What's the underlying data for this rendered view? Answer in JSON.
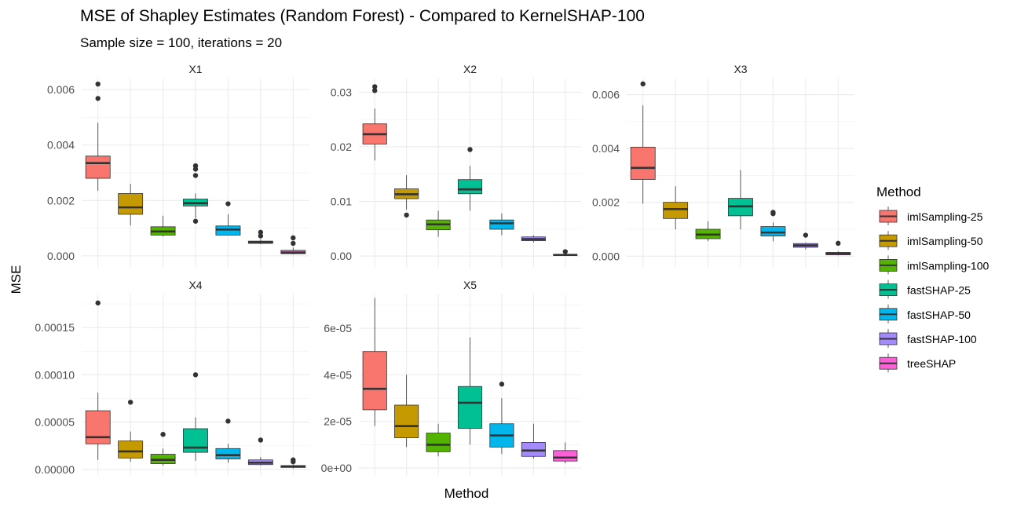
{
  "chart_data": {
    "type": "box",
    "title": "MSE of Shapley Estimates (Random Forest) - Compared to KernelSHAP-100",
    "subtitle": "Sample size = 100, iterations = 20",
    "xlabel": "Method",
    "ylabel": "MSE",
    "legend": {
      "title": "Method",
      "position": "right",
      "entries": [
        {
          "name": "imlSampling-25",
          "color": "#F8766D"
        },
        {
          "name": "imlSampling-50",
          "color": "#C49A00"
        },
        {
          "name": "imlSampling-100",
          "color": "#53B400"
        },
        {
          "name": "fastSHAP-25",
          "color": "#00C094"
        },
        {
          "name": "fastSHAP-50",
          "color": "#00B6EB"
        },
        {
          "name": "fastSHAP-100",
          "color": "#A58AFF"
        },
        {
          "name": "treeSHAP",
          "color": "#FB61D7"
        }
      ]
    },
    "grid": true,
    "panels": [
      {
        "name": "X1",
        "ylim": [
          -0.0004,
          0.0064
        ],
        "yticks": [
          0.0,
          0.002,
          0.004,
          0.006
        ],
        "ytick_labels": [
          "0.000",
          "0.002",
          "0.004",
          "0.006"
        ],
        "boxes": [
          {
            "lw": 0.00235,
            "q1": 0.0028,
            "med": 0.00335,
            "q3": 0.0036,
            "uw": 0.0048,
            "out": [
              0.0062,
              0.00568
            ]
          },
          {
            "lw": 0.0011,
            "q1": 0.0015,
            "med": 0.00175,
            "q3": 0.00225,
            "uw": 0.0026,
            "out": []
          },
          {
            "lw": 0.0007,
            "q1": 0.00075,
            "med": 0.00088,
            "q3": 0.00105,
            "uw": 0.00145,
            "out": []
          },
          {
            "lw": 0.00135,
            "q1": 0.0018,
            "med": 0.0019,
            "q3": 0.00205,
            "uw": 0.00225,
            "out": [
              0.00325,
              0.00313,
              0.0029,
              0.00125
            ]
          },
          {
            "lw": 0.00075,
            "q1": 0.00075,
            "med": 0.00095,
            "q3": 0.00108,
            "uw": 0.0015,
            "out": [
              0.00188
            ]
          },
          {
            "lw": 0.00042,
            "q1": 0.00045,
            "med": 0.0005,
            "q3": 0.00053,
            "uw": 0.0006,
            "out": [
              0.00085,
              0.00072
            ]
          },
          {
            "lw": 5e-05,
            "q1": 8e-05,
            "med": 0.00012,
            "q3": 0.0002,
            "uw": 0.0003,
            "out": [
              0.00065,
              0.00045
            ]
          }
        ]
      },
      {
        "name": "X2",
        "ylim": [
          -0.002,
          0.0325
        ],
        "yticks": [
          0.0,
          0.01,
          0.02,
          0.03
        ],
        "ytick_labels": [
          "0.00",
          "0.01",
          "0.02",
          "0.03"
        ],
        "boxes": [
          {
            "lw": 0.0175,
            "q1": 0.0205,
            "med": 0.0223,
            "q3": 0.0242,
            "uw": 0.027,
            "out": [
              0.031,
              0.0303
            ]
          },
          {
            "lw": 0.0085,
            "q1": 0.0105,
            "med": 0.0113,
            "q3": 0.0123,
            "uw": 0.0148,
            "out": [
              0.0075
            ]
          },
          {
            "lw": 0.0035,
            "q1": 0.0048,
            "med": 0.0058,
            "q3": 0.0066,
            "uw": 0.0083,
            "out": []
          },
          {
            "lw": 0.0083,
            "q1": 0.0114,
            "med": 0.0122,
            "q3": 0.014,
            "uw": 0.0165,
            "out": [
              0.0195
            ]
          },
          {
            "lw": 0.0038,
            "q1": 0.0049,
            "med": 0.006,
            "q3": 0.0066,
            "uw": 0.0078,
            "out": []
          },
          {
            "lw": 0.0025,
            "q1": 0.0028,
            "med": 0.0031,
            "q3": 0.0035,
            "uw": 0.0038,
            "out": []
          },
          {
            "lw": 0.0001,
            "q1": 0.0001,
            "med": 0.0002,
            "q3": 0.0003,
            "uw": 0.0004,
            "out": [
              0.0008
            ]
          }
        ]
      },
      {
        "name": "X3",
        "ylim": [
          -0.0004,
          0.0066
        ],
        "yticks": [
          0.0,
          0.002,
          0.004,
          0.006
        ],
        "ytick_labels": [
          "0.000",
          "0.002",
          "0.004",
          "0.006"
        ],
        "boxes": [
          {
            "lw": 0.00195,
            "q1": 0.00285,
            "med": 0.00328,
            "q3": 0.00405,
            "uw": 0.0056,
            "out": [
              0.0064
            ]
          },
          {
            "lw": 0.001,
            "q1": 0.0014,
            "med": 0.00175,
            "q3": 0.002,
            "uw": 0.0026,
            "out": []
          },
          {
            "lw": 0.00055,
            "q1": 0.00065,
            "med": 0.0008,
            "q3": 0.001,
            "uw": 0.0013,
            "out": []
          },
          {
            "lw": 0.001,
            "q1": 0.0015,
            "med": 0.00185,
            "q3": 0.00215,
            "uw": 0.0032,
            "out": []
          },
          {
            "lw": 0.00055,
            "q1": 0.00075,
            "med": 0.00088,
            "q3": 0.0011,
            "uw": 0.00125,
            "out": [
              0.00163,
              0.00158
            ]
          },
          {
            "lw": 0.00025,
            "q1": 0.00033,
            "med": 0.0004,
            "q3": 0.00047,
            "uw": 0.0005,
            "out": [
              0.00078
            ]
          },
          {
            "lw": 3e-05,
            "q1": 5e-05,
            "med": 0.0001,
            "q3": 0.00014,
            "uw": 0.00018,
            "out": [
              0.00048
            ]
          }
        ]
      },
      {
        "name": "X4",
        "ylim": [
          -6e-06,
          0.000185
        ],
        "yticks": [
          0.0,
          5e-05,
          0.0001,
          0.00015
        ],
        "ytick_labels": [
          "0.00000",
          "0.00005",
          "0.00010",
          "0.00015"
        ],
        "boxes": [
          {
            "lw": 1e-05,
            "q1": 2.7e-05,
            "med": 3.4e-05,
            "q3": 6.2e-05,
            "uw": 8.1e-05,
            "out": [
              0.000176
            ]
          },
          {
            "lw": 8e-06,
            "q1": 1.2e-05,
            "med": 1.9e-05,
            "q3": 3e-05,
            "uw": 4e-05,
            "out": [
              7.1e-05
            ]
          },
          {
            "lw": 4e-06,
            "q1": 6e-06,
            "med": 1e-05,
            "q3": 1.6e-05,
            "uw": 2.2e-05,
            "out": [
              3.7e-05
            ]
          },
          {
            "lw": 9e-06,
            "q1": 1.8e-05,
            "med": 2.3e-05,
            "q3": 4.3e-05,
            "uw": 5.5e-05,
            "out": [
              0.0001
            ]
          },
          {
            "lw": 7e-06,
            "q1": 1.1e-05,
            "med": 1.5e-05,
            "q3": 2.2e-05,
            "uw": 2.7e-05,
            "out": [
              5.1e-05
            ]
          },
          {
            "lw": 4e-06,
            "q1": 5e-06,
            "med": 7e-06,
            "q3": 1e-05,
            "uw": 1.3e-05,
            "out": [
              3.1e-05
            ]
          },
          {
            "lw": 1e-06,
            "q1": 2e-06,
            "med": 3e-06,
            "q3": 4e-06,
            "uw": 5e-06,
            "out": [
              1e-05,
              8e-06
            ]
          }
        ]
      },
      {
        "name": "X5",
        "ylim": [
          -3e-06,
          7.45e-05
        ],
        "yticks": [
          0,
          2e-05,
          4e-05,
          6e-05
        ],
        "ytick_labels": [
          "0e+00",
          "2e-05",
          "4e-05",
          "6e-05"
        ],
        "boxes": [
          {
            "lw": 1.8e-05,
            "q1": 2.5e-05,
            "med": 3.4e-05,
            "q3": 5e-05,
            "uw": 7.3e-05,
            "out": []
          },
          {
            "lw": 9e-06,
            "q1": 1.3e-05,
            "med": 1.8e-05,
            "q3": 2.7e-05,
            "uw": 4e-05,
            "out": []
          },
          {
            "lw": 5e-06,
            "q1": 7e-06,
            "med": 1e-05,
            "q3": 1.5e-05,
            "uw": 1.9e-05,
            "out": []
          },
          {
            "lw": 1e-05,
            "q1": 1.7e-05,
            "med": 2.8e-05,
            "q3": 3.5e-05,
            "uw": 5.6e-05,
            "out": []
          },
          {
            "lw": 6e-06,
            "q1": 9e-06,
            "med": 1.4e-05,
            "q3": 1.9e-05,
            "uw": 3e-05,
            "out": [
              3.6e-05
            ]
          },
          {
            "lw": 4e-06,
            "q1": 5e-06,
            "med": 7.5e-06,
            "q3": 1.1e-05,
            "uw": 1.9e-05,
            "out": []
          },
          {
            "lw": 2e-06,
            "q1": 3e-06,
            "med": 4.5e-06,
            "q3": 7.5e-06,
            "uw": 1.1e-05,
            "out": []
          }
        ]
      }
    ]
  }
}
